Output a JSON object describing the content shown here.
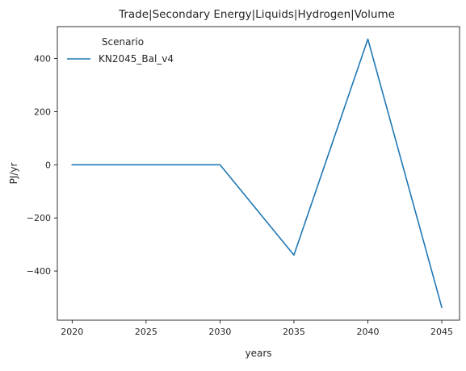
{
  "chart_data": {
    "type": "line",
    "title": "Trade|Secondary Energy|Liquids|Hydrogen|Volume",
    "xlabel": "years",
    "ylabel": "PJ/yr",
    "x": [
      2020,
      2025,
      2030,
      2035,
      2040,
      2045
    ],
    "xticks": [
      2020,
      2025,
      2030,
      2035,
      2040,
      2045
    ],
    "xtick_labels": [
      "2020",
      "2025",
      "2030",
      "2035",
      "2040",
      "2045"
    ],
    "yticks": [
      -400,
      -200,
      0,
      200,
      400
    ],
    "ytick_labels": [
      "−400",
      "−200",
      "0",
      "200",
      "400"
    ],
    "xlim": [
      2019,
      2046.2
    ],
    "ylim": [
      -585,
      520
    ],
    "grid": false,
    "legend": {
      "title": "Scenario",
      "placement": "upper-left"
    },
    "series": [
      {
        "name": "KN2045_Bal_v4",
        "color": "#1f77b4",
        "values": [
          0,
          0,
          0,
          -340,
          473,
          -537
        ]
      }
    ]
  }
}
